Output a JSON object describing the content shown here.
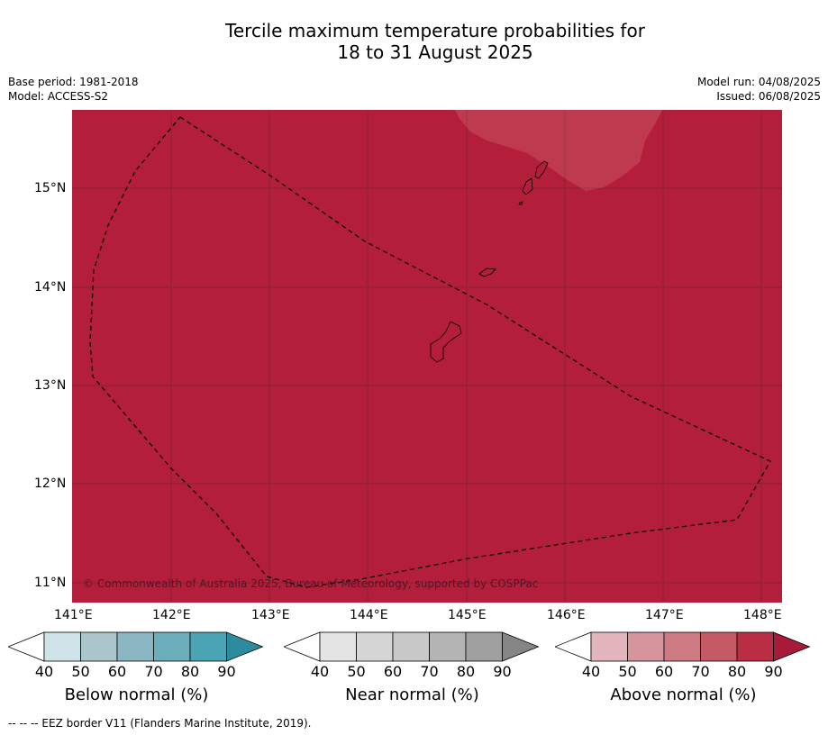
{
  "title": {
    "line1": "Tercile maximum temperature probabilities for",
    "line2": "18 to 31 August 2025"
  },
  "meta": {
    "base_period": "Base period: 1981-2018",
    "model": "Model: ACCESS-S2",
    "model_run": "Model run: 04/08/2025",
    "issued": "Issued: 06/08/2025"
  },
  "map": {
    "background_color": "#b31e3a",
    "region_color": "#bf3a4f",
    "lon_labels": [
      "141°E",
      "142°E",
      "143°E",
      "144°E",
      "145°E",
      "146°E",
      "147°E",
      "148°E"
    ],
    "lat_labels": [
      "15°N",
      "14°N",
      "13°N",
      "12°N",
      "11°N"
    ],
    "copyright": "© Commonwealth of Australia 2025, Bureau of Meteorology, supported by COSPPac"
  },
  "colorbars": [
    {
      "id": "below",
      "label": "Below normal (%)",
      "ticks": [
        "40",
        "50",
        "60",
        "70",
        "80",
        "90"
      ],
      "colors": [
        "#ffffff",
        "#cde3e8",
        "#aac6cb",
        "#8ab6c2",
        "#6caebc",
        "#4aa4b4",
        "#2e8b9e"
      ]
    },
    {
      "id": "near",
      "label": "Near normal (%)",
      "ticks": [
        "40",
        "50",
        "60",
        "70",
        "80",
        "90"
      ],
      "colors": [
        "#ffffff",
        "#e4e4e4",
        "#d6d6d6",
        "#c8c8c8",
        "#b4b4b4",
        "#a0a0a0",
        "#858585"
      ]
    },
    {
      "id": "above",
      "label": "Above normal (%)",
      "ticks": [
        "40",
        "50",
        "60",
        "70",
        "80",
        "90"
      ],
      "colors": [
        "#ffffff",
        "#e2b6bc",
        "#d6959d",
        "#cd7a82",
        "#c55a67",
        "#b92e44",
        "#a81a3a"
      ]
    }
  ],
  "footer": "--  --  -- EEZ border V11 (Flanders Marine Institute, 2019)."
}
